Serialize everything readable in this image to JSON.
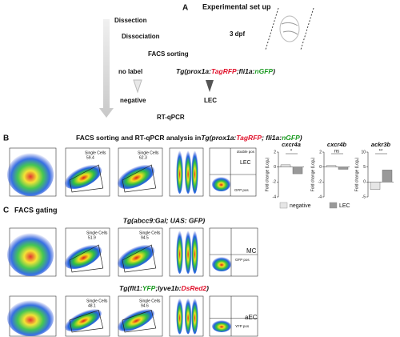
{
  "panel_a": {
    "label": "A",
    "title": "Experimental set up",
    "steps": [
      "Dissection",
      "Dissociation",
      "FACS sorting",
      "RT-qPCR"
    ],
    "age": "3 dpf",
    "control": "no label",
    "genotype": [
      "Tg(prox1a:",
      "TagRFP",
      ";fli1a:",
      "nGFP",
      ")"
    ],
    "outputs": [
      "negative",
      "LEC"
    ]
  },
  "panel_b": {
    "label": "B",
    "title": "FACS sorting and RT-qPCR analysis in",
    "genotype": [
      "Tg(prox1a:",
      "TagRFP",
      "; fli1a:",
      "nGFP",
      ")"
    ],
    "gates": [
      "Single Cells",
      "Single Cells",
      "double pos",
      "LEC",
      "GFP pos"
    ],
    "gate_values": [
      "59.4",
      "62.3"
    ],
    "y_label": "Fold change (Log₂)",
    "charts": [
      {
        "type": "bar",
        "title": "cxcr4a",
        "significance": "*",
        "ylim": [
          -4,
          2
        ],
        "yticks": [
          -4,
          -2,
          0,
          2
        ],
        "values": [
          0.3,
          -0.9
        ]
      },
      {
        "type": "bar",
        "title": "cxcr4b",
        "significance": "ns",
        "ylim": [
          -4,
          2
        ],
        "yticks": [
          -4,
          -2,
          0,
          2
        ],
        "values": [
          0.2,
          -0.3
        ]
      },
      {
        "type": "bar",
        "title": "ackr3b",
        "significance": "**",
        "ylim": [
          -5,
          10
        ],
        "yticks": [
          -5,
          0,
          5,
          10
        ],
        "values": [
          -2.5,
          4
        ]
      }
    ],
    "legend": [
      {
        "name": "negative",
        "color": "#e6e6e6"
      },
      {
        "name": "LEC",
        "color": "#999999"
      }
    ]
  },
  "panel_c": {
    "label": "C",
    "title": "FACS gating",
    "row1": {
      "genotype": "Tg(abcc9:Gal; UAS: GFP)",
      "gates": [
        "Single Cells",
        "Single Cells",
        "MC",
        "GFP pos"
      ],
      "gate_values": [
        "51.9",
        "94.5"
      ]
    },
    "row2": {
      "genotype": [
        "Tg(flt1:",
        "YFP",
        ";lyve1b:",
        "DsRed2",
        ")"
      ],
      "gates": [
        "Single Cells",
        "Single Cells",
        "aEC",
        "YFP pos"
      ],
      "gate_values": [
        "48.1",
        "94.6"
      ]
    }
  }
}
